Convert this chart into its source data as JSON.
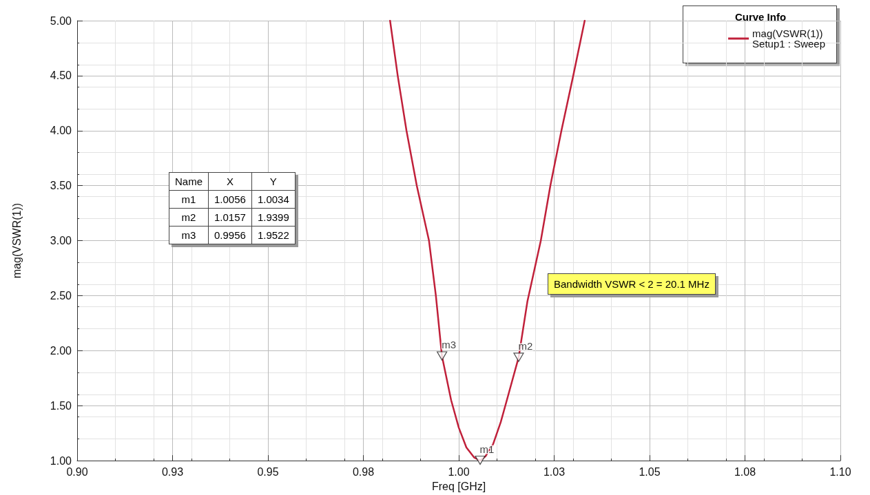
{
  "chart_data": {
    "type": "line",
    "xlabel": "Freq [GHz]",
    "ylabel": "mag(VSWR(1))",
    "legend_title": "Curve Info",
    "x": [
      0.982,
      0.984,
      0.9863,
      0.989,
      0.9922,
      0.994,
      0.9956,
      0.998,
      1.0,
      1.002,
      1.004,
      1.0056,
      1.007,
      1.009,
      1.011,
      1.013,
      1.0157,
      1.018,
      1.0215,
      1.024,
      1.0269,
      1.03,
      1.033
    ],
    "series": [
      {
        "name": "mag(VSWR(1))\nSetup1 : Sweep",
        "color": "#c0203a",
        "values": [
          5.0,
          4.5,
          4.0,
          3.5,
          3.0,
          2.5,
          1.95,
          1.55,
          1.3,
          1.12,
          1.03,
          1.0,
          1.04,
          1.15,
          1.35,
          1.6,
          1.94,
          2.45,
          3.0,
          3.5,
          4.0,
          4.5,
          5.0
        ]
      },
      {
        "type": "scatter",
        "color": "#ffffff",
        "x": [
          1.0056,
          1.0157,
          0.9956
        ],
        "values": [
          1.0034,
          1.9399,
          1.9522
        ],
        "value_labels": [
          "m1",
          "m2",
          "m3"
        ]
      }
    ],
    "xlim": [
      0.9,
      1.1
    ],
    "xticks": [
      {
        "value": 0.9,
        "label": "0.90"
      },
      {
        "value": 0.925,
        "label": "0.93"
      },
      0.95,
      {
        "value": 0.975,
        "label": "0.98"
      },
      {
        "value": 1.0,
        "label": "1.00"
      },
      {
        "value": 1.025,
        "label": "1.03"
      },
      1.05,
      {
        "value": 1.075,
        "label": "1.08"
      },
      {
        "value": 1.1,
        "label": "1.10"
      }
    ],
    "ylim": [
      1,
      5
    ],
    "yticks": [
      {
        "value": 1,
        "label": "1.00"
      },
      {
        "value": 1.5,
        "label": "1.50"
      },
      {
        "value": 2,
        "label": "2.00"
      },
      {
        "value": 2.5,
        "label": "2.50"
      },
      {
        "value": 3,
        "label": "3.00"
      },
      {
        "value": 3.5,
        "label": "3.50"
      },
      {
        "value": 4,
        "label": "4.00"
      },
      {
        "value": 4.5,
        "label": "4.50"
      },
      {
        "value": 5,
        "label": "5.00"
      }
    ],
    "grid": true,
    "legend": "top right",
    "line_style": "solid",
    "annotations": [
      "Bandwidth VSWR < 2 = 20.1 MHz",
      "Name",
      "X",
      "Y",
      "m1",
      "1.0056",
      "1.0034",
      "m2",
      "1.0157",
      "1.9399",
      "m3",
      "0.9956",
      "1.9522"
    ]
  }
}
